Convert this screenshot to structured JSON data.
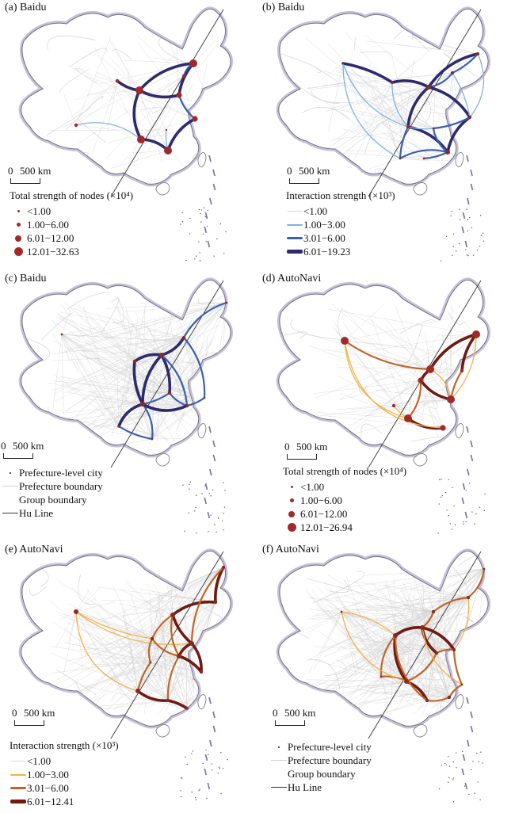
{
  "colors": {
    "outline": "#6f6f6f",
    "halo": "#c8bfe0",
    "grid": "#d4d4d4",
    "node": "#a02a2a",
    "hu_line": "#333333",
    "baidu_lines": [
      "#d9d9d9",
      "#7fb3e0",
      "#3a5fb0",
      "#2f2a6b"
    ],
    "autonavi_lines": [
      "#d9d9d9",
      "#f2b24a",
      "#c1652a",
      "#6e1c12"
    ]
  },
  "panels": [
    {
      "id": "a",
      "title": "(a) Baidu",
      "scale": {
        "zero": "0",
        "km": "500 km"
      },
      "legend": {
        "kind": "nodes",
        "title": "Total strength of nodes (×10⁴)",
        "items": [
          "<1.00",
          "1.00−6.00",
          "6.01−12.00",
          "12.01−32.63"
        ]
      }
    },
    {
      "id": "b",
      "title": "(b) Baidu",
      "scale": {
        "zero": "0",
        "km": "500 km"
      },
      "legend": {
        "kind": "lines",
        "palette": "baidu",
        "title": "Interaction strength (×10³)",
        "items": [
          "<1.00",
          "1.00−3.00",
          "3.01−6.00",
          "6.01−19.23"
        ]
      }
    },
    {
      "id": "c",
      "title": "(c) Baidu",
      "scale": {
        "zero": "0",
        "km": "500 km"
      },
      "legend": {
        "kind": "boundaries",
        "items": [
          "Prefecture-level city",
          "Prefecture boundary",
          "Group boundary",
          "Hu Line"
        ]
      }
    },
    {
      "id": "d",
      "title": "(d) AutoNavi",
      "scale": {
        "zero": "0",
        "km": "500 km"
      },
      "legend": {
        "kind": "nodes",
        "title": "Total strength of nodes (×10⁴)",
        "items": [
          "<1.00",
          "1.00−6.00",
          "6.01−12.00",
          "12.01−26.94"
        ]
      }
    },
    {
      "id": "e",
      "title": "(e) AutoNavi",
      "scale": {
        "zero": "0",
        "km": "500 km"
      },
      "legend": {
        "kind": "lines",
        "palette": "autonavi",
        "title": "Interaction strength (×10³)",
        "items": [
          "<1.00",
          "1.00−3.00",
          "3.01−6.00",
          "6.01−12.41"
        ]
      }
    },
    {
      "id": "f",
      "title": "(f) AutoNavi",
      "scale": {
        "zero": "0",
        "km": "500 km"
      },
      "legend": {
        "kind": "boundaries",
        "items": [
          "Prefecture-level city",
          "Prefecture boundary",
          "Group boundary",
          "Hu Line"
        ]
      }
    }
  ]
}
